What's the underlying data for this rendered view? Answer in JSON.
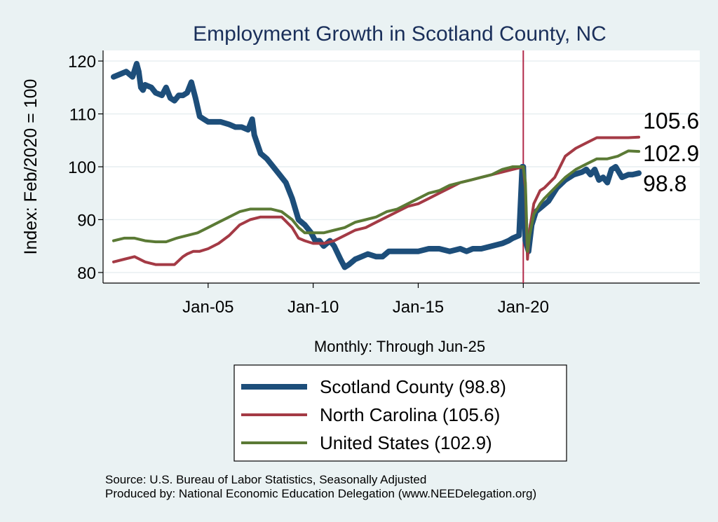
{
  "chart_data": {
    "type": "line",
    "title": "Employment Growth in Scotland  County, NC",
    "ylabel": "Index: Feb/2020 = 100",
    "xlabel": "Monthly: Through Jun-25",
    "ylim": [
      78,
      122
    ],
    "yticks": [
      80,
      90,
      100,
      110,
      120
    ],
    "xlim": [
      2000.0,
      2028.4
    ],
    "xticks": [
      {
        "label": "Jan-05",
        "value": 2005.0
      },
      {
        "label": "Jan-10",
        "value": 2010.0
      },
      {
        "label": "Jan-15",
        "value": 2015.0
      },
      {
        "label": "Jan-20",
        "value": 2020.0
      }
    ],
    "vline": {
      "x": 2020.0,
      "color": "#b22a4a"
    },
    "grid": true,
    "series": [
      {
        "name": "Scotland  County",
        "legend": "Scotland  County (98.8)",
        "end_label": "98.8",
        "color": "#1d4e7a",
        "width": 8,
        "x": [
          2000.5,
          2000.8,
          2001.1,
          2001.4,
          2001.6,
          2001.7,
          2001.8,
          2001.9,
          2002.0,
          2002.3,
          2002.5,
          2002.8,
          2003.0,
          2003.2,
          2003.4,
          2003.6,
          2003.8,
          2004.0,
          2004.2,
          2004.4,
          2004.6,
          2004.8,
          2005.0,
          2005.3,
          2005.6,
          2006.0,
          2006.3,
          2006.6,
          2006.9,
          2007.1,
          2007.2,
          2007.5,
          2007.8,
          2008.1,
          2008.4,
          2008.7,
          2009.0,
          2009.3,
          2009.6,
          2009.9,
          2010.1,
          2010.3,
          2010.5,
          2010.8,
          2011.0,
          2011.3,
          2011.5,
          2011.7,
          2012.0,
          2012.3,
          2012.6,
          2013.0,
          2013.3,
          2013.6,
          2014.0,
          2014.5,
          2015.0,
          2015.5,
          2016.0,
          2016.5,
          2017.0,
          2017.3,
          2017.6,
          2018.0,
          2018.5,
          2019.0,
          2019.3,
          2019.5,
          2019.8,
          2019.95,
          2020.0,
          2020.1,
          2020.25,
          2020.4,
          2020.6,
          2020.9,
          2021.2,
          2021.6,
          2022.0,
          2022.4,
          2022.8,
          2023.0,
          2023.2,
          2023.4,
          2023.6,
          2023.8,
          2024.0,
          2024.2,
          2024.4,
          2024.7,
          2025.0,
          2025.2,
          2025.5
        ],
        "values": [
          117,
          117.5,
          118,
          117,
          119.5,
          118,
          115,
          114.5,
          115.5,
          115,
          114,
          113.5,
          115,
          113,
          112.5,
          113.5,
          113.5,
          114,
          116,
          113,
          109.5,
          109,
          108.5,
          108.5,
          108.5,
          108,
          107.5,
          107.5,
          107,
          109,
          106,
          102.5,
          101.5,
          100,
          98.5,
          97,
          94,
          90,
          89,
          87.5,
          86,
          86,
          85,
          86,
          85,
          82.5,
          81,
          81.5,
          82.5,
          83,
          83.5,
          83,
          83,
          84,
          84,
          84,
          84,
          84.5,
          84.5,
          84,
          84.5,
          84,
          84.5,
          84.5,
          85,
          85.5,
          86,
          86.5,
          87,
          100,
          100,
          86,
          84,
          89,
          91.5,
          92.5,
          93.5,
          96,
          97.5,
          98.5,
          99,
          99.5,
          98.5,
          99.5,
          97.5,
          98,
          97,
          99.5,
          100,
          98,
          98.5,
          98.5,
          98.8
        ]
      },
      {
        "name": "North Carolina",
        "legend": "North Carolina (105.6)",
        "end_label": "105.6",
        "color": "#a43a45",
        "width": 4,
        "x": [
          2000.5,
          2001.0,
          2001.5,
          2002.0,
          2002.5,
          2003.0,
          2003.4,
          2003.8,
          2004.0,
          2004.3,
          2004.6,
          2005.0,
          2005.5,
          2006.0,
          2006.5,
          2007.0,
          2007.5,
          2008.0,
          2008.5,
          2009.0,
          2009.3,
          2009.6,
          2010.0,
          2010.5,
          2011.0,
          2011.5,
          2012.0,
          2012.5,
          2013.0,
          2013.5,
          2014.0,
          2014.5,
          2015.0,
          2015.5,
          2016.0,
          2016.5,
          2017.0,
          2017.5,
          2018.0,
          2018.5,
          2019.0,
          2019.5,
          2020.0,
          2020.1,
          2020.2,
          2020.3,
          2020.5,
          2020.8,
          2021.0,
          2021.5,
          2022.0,
          2022.5,
          2023.0,
          2023.5,
          2024.0,
          2024.5,
          2025.0,
          2025.5
        ],
        "values": [
          82,
          82.5,
          83,
          82,
          81.5,
          81.5,
          81.5,
          83,
          83.5,
          84,
          84,
          84.5,
          85.5,
          87,
          89,
          90,
          90.5,
          90.5,
          90.5,
          88.5,
          86.5,
          86,
          85.5,
          85.5,
          86,
          87,
          88,
          88.5,
          89.5,
          90.5,
          91.5,
          92.5,
          93,
          94,
          95,
          96,
          97,
          97.5,
          98,
          98.5,
          99,
          99.5,
          100,
          96,
          82.5,
          88,
          93,
          95.5,
          96,
          98,
          102,
          103.5,
          104.5,
          105.5,
          105.5,
          105.5,
          105.5,
          105.6
        ]
      },
      {
        "name": "United States",
        "legend": "United States (102.9)",
        "end_label": "102.9",
        "color": "#5b7a35",
        "width": 4,
        "x": [
          2000.5,
          2001.0,
          2001.5,
          2002.0,
          2002.5,
          2003.0,
          2003.5,
          2004.0,
          2004.5,
          2005.0,
          2005.5,
          2006.0,
          2006.5,
          2007.0,
          2007.5,
          2008.0,
          2008.5,
          2009.0,
          2009.3,
          2009.6,
          2010.0,
          2010.5,
          2011.0,
          2011.5,
          2012.0,
          2012.5,
          2013.0,
          2013.5,
          2014.0,
          2014.5,
          2015.0,
          2015.5,
          2016.0,
          2016.5,
          2017.0,
          2017.5,
          2018.0,
          2018.5,
          2019.0,
          2019.5,
          2020.0,
          2020.1,
          2020.2,
          2020.3,
          2020.5,
          2020.8,
          2021.0,
          2021.5,
          2022.0,
          2022.5,
          2023.0,
          2023.5,
          2024.0,
          2024.5,
          2025.0,
          2025.5
        ],
        "values": [
          86,
          86.5,
          86.5,
          86,
          85.8,
          85.8,
          86.5,
          87,
          87.5,
          88.5,
          89.5,
          90.5,
          91.5,
          92,
          92,
          92,
          91.5,
          90,
          88.5,
          87.5,
          87.5,
          87.5,
          88,
          88.5,
          89.5,
          90,
          90.5,
          91.5,
          92,
          93,
          94,
          95,
          95.5,
          96.5,
          97,
          97.5,
          98,
          98.5,
          99.5,
          100,
          100,
          97,
          84,
          87,
          91,
          93,
          94,
          96,
          98,
          99.5,
          100.5,
          101.5,
          101.5,
          102,
          103,
          102.9
        ]
      }
    ]
  },
  "footer": {
    "source": "Source: U.S. Bureau of Labor Statistics, Seasonally Adjusted",
    "produced_by": "Produced by: National Economic Education Delegation (www.NEEDelegation.org)"
  }
}
